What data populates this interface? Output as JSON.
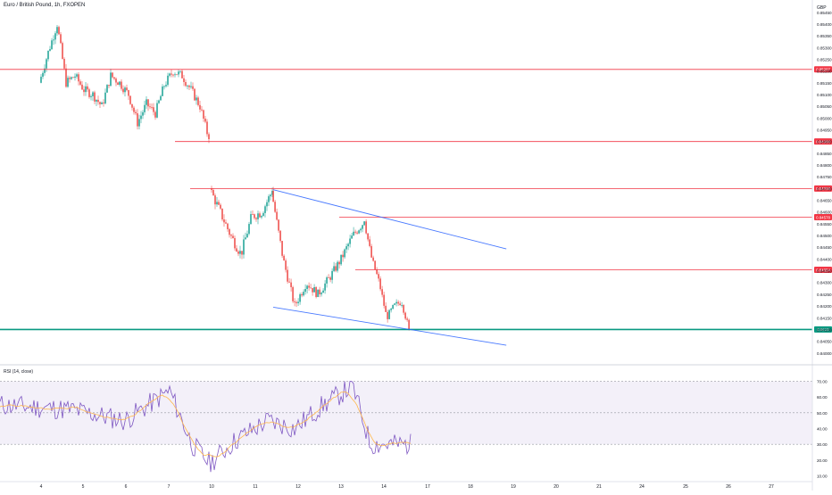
{
  "header": {
    "symbol_title": "Euro / British Pound, 1h, FXOPEN",
    "currency": "GBP"
  },
  "rsi": {
    "title": "RSI (14, close)"
  },
  "colors": {
    "up": "#26a69a",
    "down": "#ef5350",
    "line_red": "#f23645",
    "line_green": "#089981",
    "channel": "#2962ff",
    "rsi": "#7e57c2",
    "rsi_ma": "#ffb74d"
  },
  "chart_data": [
    {
      "type": "candlestick",
      "title": "Euro / British Pound, 1h, FXOPEN",
      "x_ticks": [
        "4",
        "5",
        "6",
        "7",
        "10",
        "11",
        "12",
        "13",
        "14",
        "17",
        "18",
        "19",
        "20",
        "21",
        "24",
        "25",
        "26",
        "27"
      ],
      "y_ticks": [
        "0.85450",
        "0.85400",
        "0.85350",
        "0.85300",
        "0.85250",
        "0.85200",
        "0.85150",
        "0.85100",
        "0.85050",
        "0.85000",
        "0.84950",
        "0.84900",
        "0.84850",
        "0.84800",
        "0.84750",
        "0.84700",
        "0.84650",
        "0.84600",
        "0.84550",
        "0.84500",
        "0.84450",
        "0.84400",
        "0.84350",
        "0.84300",
        "0.84250",
        "0.84200",
        "0.84150",
        "0.84100",
        "0.84050",
        "0.84000"
      ],
      "ylim": [
        0.83965,
        0.85472
      ],
      "horizontal_levels": [
        {
          "label": "0.85207",
          "value": 0.85207,
          "color": "red"
        },
        {
          "label": "0.84900",
          "value": 0.849,
          "color": "red"
        },
        {
          "label": "0.84700",
          "value": 0.847,
          "color": "red"
        },
        {
          "label": "0.84578",
          "value": 0.84578,
          "color": "red"
        },
        {
          "label": "0.84354",
          "value": 0.84354,
          "color": "red"
        },
        {
          "label": "0.8410",
          "value": 0.841,
          "color": "green"
        }
      ],
      "channel": {
        "upper": [
          {
            "x": "11 10:00",
            "y": 0.84695
          },
          {
            "x": "18 20:00",
            "y": 0.84443
          }
        ],
        "lower": [
          {
            "x": "11 10:00",
            "y": 0.84195
          },
          {
            "x": "18 20:00",
            "y": 0.84033
          }
        ]
      },
      "candle_segments": [
        {
          "from": "4 00:00",
          "to": "7 23:00",
          "open": 0.8515,
          "close": 0.8491,
          "trend": [
            0.8515,
            0.8528,
            0.854,
            0.8515,
            0.8518,
            0.8512,
            0.851,
            0.8505,
            0.8518,
            0.8515,
            0.851,
            0.8498,
            0.8506,
            0.8502,
            0.8514,
            0.852,
            0.8518,
            0.8512,
            0.8505,
            0.8491
          ],
          "volatility": 0.0004
        },
        {
          "from": "10 00:00",
          "to": "11 10:00",
          "open": 0.847,
          "close": 0.8469,
          "trend": [
            0.847,
            0.846,
            0.845,
            0.8442,
            0.8458,
            0.846,
            0.8469
          ],
          "volatility": 0.00045
        },
        {
          "from": "11 10:00",
          "to": "13 14:00",
          "open": 0.8469,
          "close": 0.8456,
          "trend": [
            0.8469,
            0.844,
            0.842,
            0.843,
            0.8425,
            0.8432,
            0.844,
            0.845,
            0.8456
          ],
          "volatility": 0.0004
        },
        {
          "from": "13 14:00",
          "to": "14 15:00",
          "open": 0.8456,
          "close": 0.841,
          "trend": [
            0.8456,
            0.844,
            0.843,
            0.8415,
            0.842,
            0.8422,
            0.841
          ],
          "volatility": 0.0003
        }
      ]
    },
    {
      "type": "line",
      "title": "RSI (14, close)",
      "y_ticks": [
        "70.00",
        "60.00",
        "50.00",
        "40.00",
        "30.00",
        "20.00",
        "10.00"
      ],
      "ylim": [
        8,
        72
      ],
      "band": [
        30,
        70
      ],
      "middle": 50
    }
  ]
}
